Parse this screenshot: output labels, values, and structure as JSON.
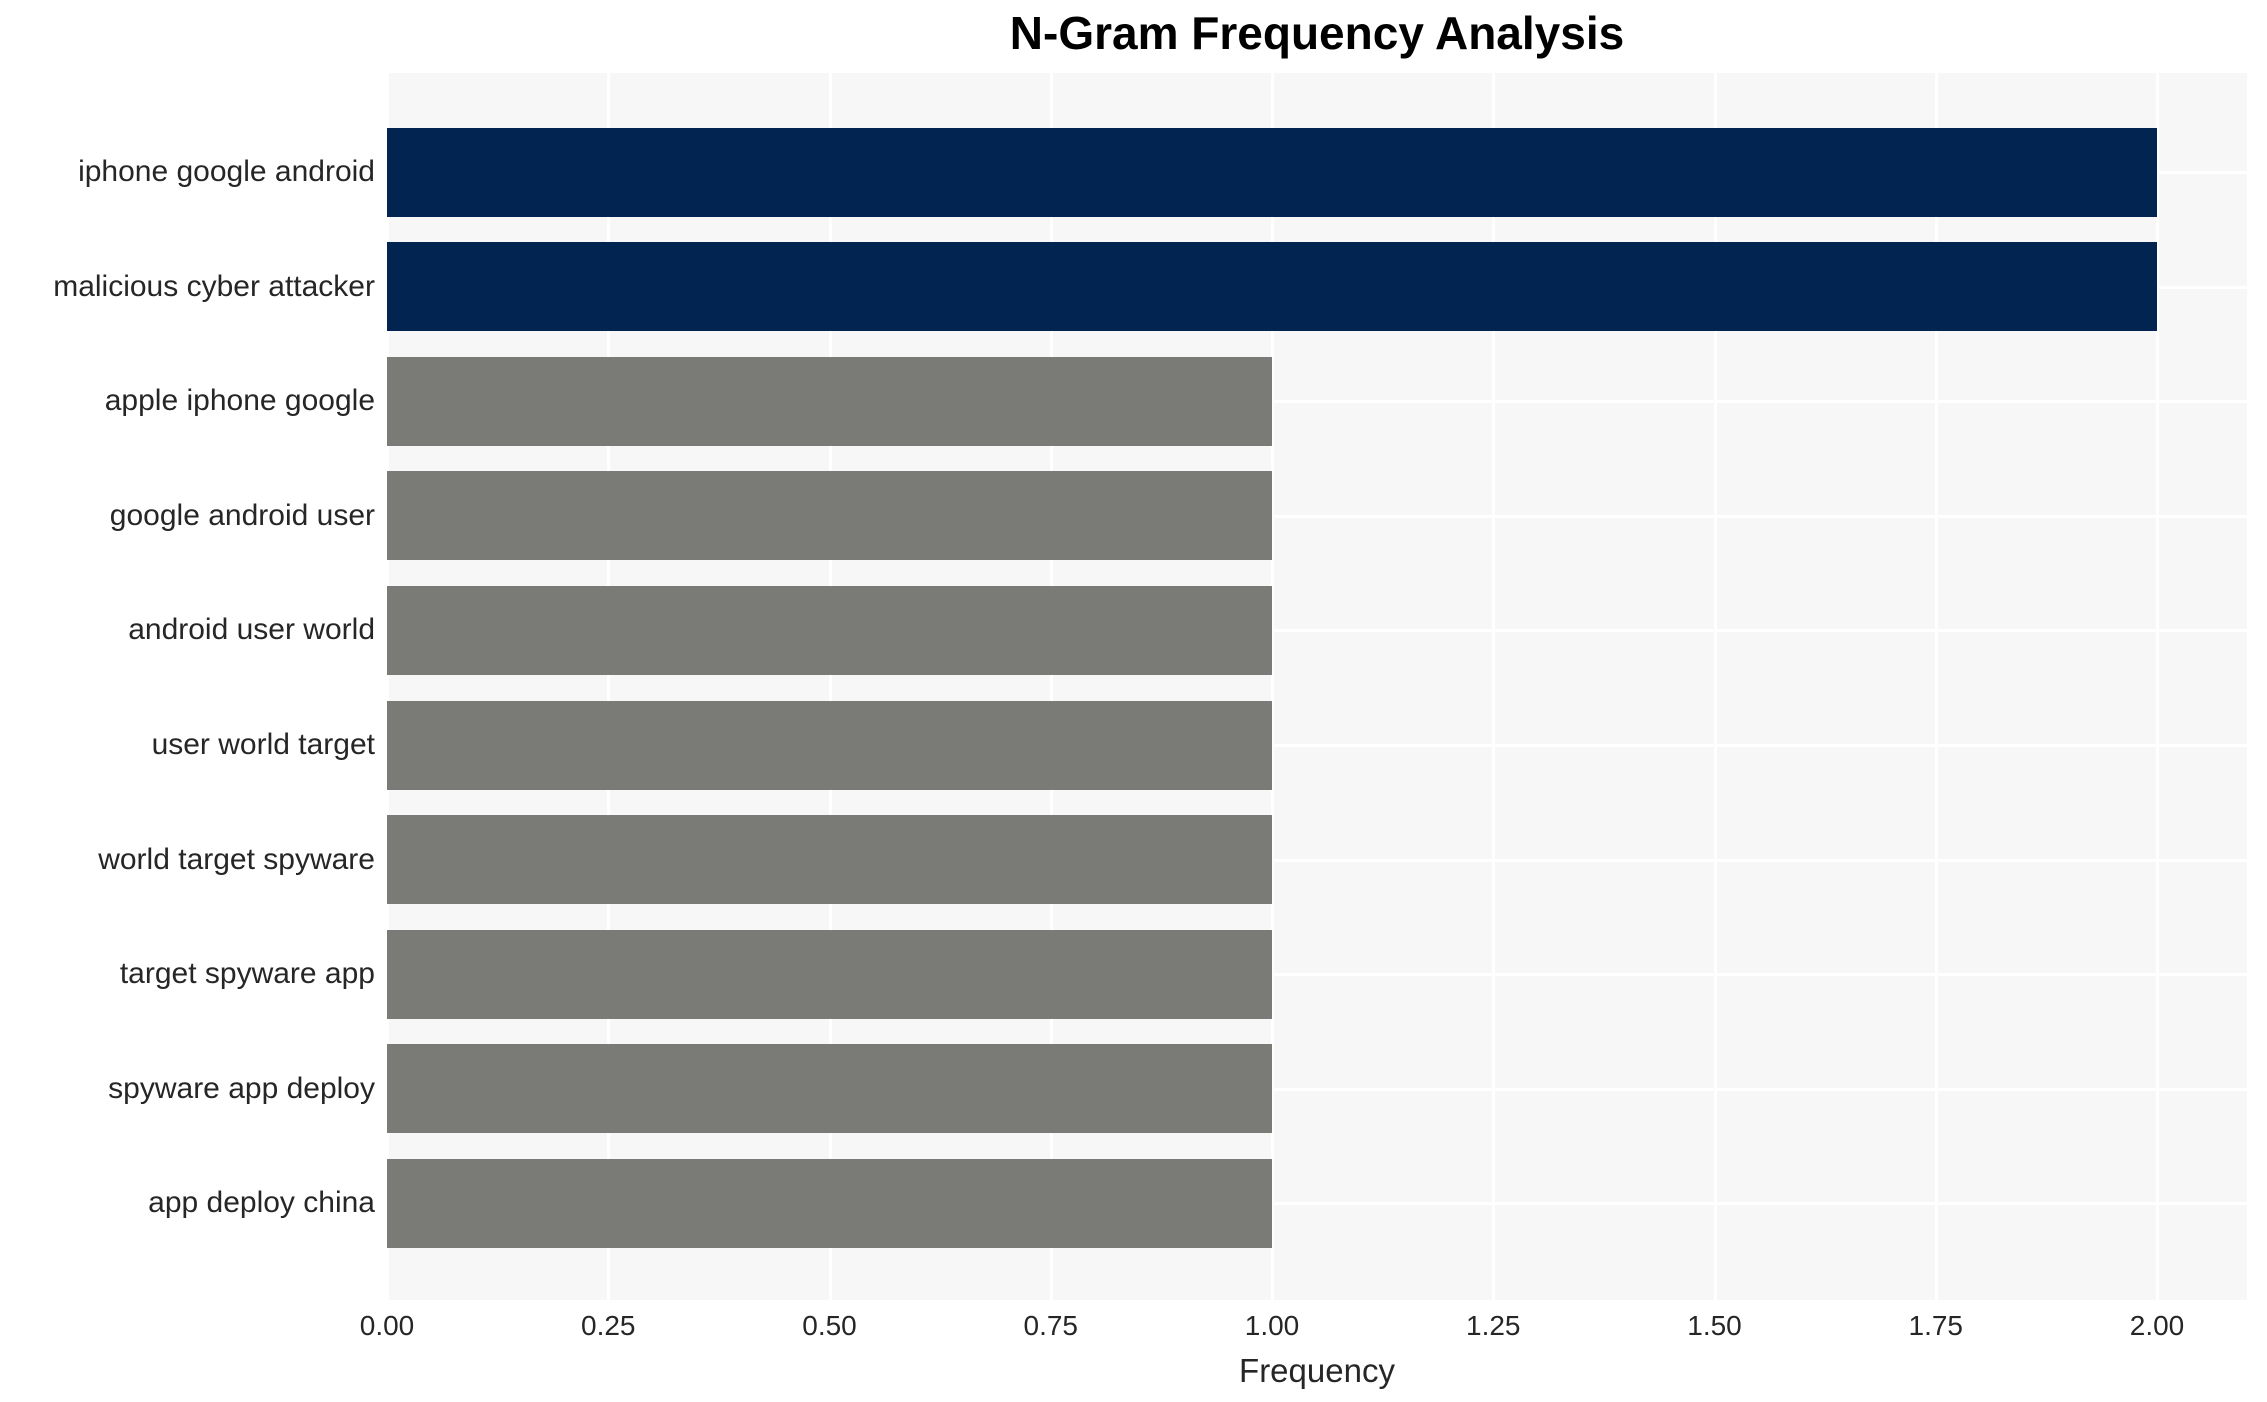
{
  "chart_data": {
    "type": "bar",
    "orientation": "horizontal",
    "title": "N-Gram Frequency Analysis",
    "xlabel": "Frequency",
    "ylabel": "",
    "categories": [
      "iphone google android",
      "malicious cyber attacker",
      "apple iphone google",
      "google android user",
      "android user world",
      "user world target",
      "world target spyware",
      "target spyware app",
      "spyware app deploy",
      "app deploy china"
    ],
    "values": [
      2,
      2,
      1,
      1,
      1,
      1,
      1,
      1,
      1,
      1
    ],
    "bar_colors": [
      "#022450",
      "#022450",
      "#7a7b77",
      "#7a7b77",
      "#7a7b77",
      "#7a7b77",
      "#7a7b77",
      "#7a7b77",
      "#7a7b77",
      "#7a7b77"
    ],
    "xlim": [
      0,
      2.1
    ],
    "xticks": [
      0.0,
      0.25,
      0.5,
      0.75,
      1.0,
      1.25,
      1.5,
      1.75,
      2.0
    ],
    "xtick_labels": [
      "0.00",
      "0.25",
      "0.50",
      "0.75",
      "1.00",
      "1.25",
      "1.50",
      "1.75",
      "2.00"
    ],
    "grid": true,
    "legend": false,
    "colors": {
      "highlight_bar": "#022450",
      "default_bar": "#7a7b77",
      "plot_background": "#f7f7f7",
      "gridline": "#ffffff",
      "tick_text": "#262626",
      "title_text": "#000000"
    }
  }
}
